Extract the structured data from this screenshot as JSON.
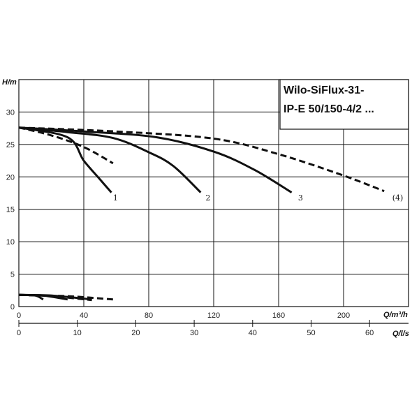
{
  "chart_data": {
    "type": "line",
    "title_lines": [
      "Wilo-SiFlux-31-",
      "IP-E 50/150-4/2 ..."
    ],
    "ylabel": "H/m",
    "xlabel": "Q/m³/h",
    "x2label": "Q/l/s",
    "ylim": [
      0,
      35
    ],
    "xlim": [
      0,
      240
    ],
    "x2lim": [
      0,
      66.67
    ],
    "yticks": [
      "0",
      "5",
      "10",
      "15",
      "20",
      "25",
      "30"
    ],
    "yticks_values": [
      0,
      5,
      10,
      15,
      20,
      25,
      30
    ],
    "xticks": [
      "0",
      "40",
      "80",
      "120",
      "160",
      "200"
    ],
    "xticks_values": [
      0,
      40,
      80,
      120,
      160,
      200
    ],
    "x2ticks": [
      "0",
      "10",
      "20",
      "30",
      "40",
      "50",
      "60"
    ],
    "x2ticks_values": [
      0,
      10,
      20,
      30,
      40,
      50,
      60
    ],
    "grid": true,
    "series": [
      {
        "name": "1",
        "style": "solid",
        "x": [
          0,
          30,
          40,
          50,
          57
        ],
        "y": [
          27.6,
          26.1,
          22.5,
          19.6,
          17.6
        ]
      },
      {
        "name": "2",
        "style": "solid",
        "x": [
          0,
          30,
          58,
          80,
          95,
          112
        ],
        "y": [
          27.6,
          26.9,
          26.0,
          23.8,
          21.7,
          17.6
        ]
      },
      {
        "name": "3",
        "style": "solid",
        "x": [
          0,
          40,
          85,
          120,
          145,
          168
        ],
        "y": [
          27.6,
          27.0,
          26.1,
          23.9,
          21.1,
          17.6
        ]
      },
      {
        "name": "(4)",
        "style": "dashed",
        "x": [
          0,
          60,
          120,
          160,
          200,
          225
        ],
        "y": [
          27.6,
          27.0,
          25.9,
          23.5,
          20.2,
          17.8
        ]
      },
      {
        "name": "",
        "style": "dashed",
        "x": [
          0,
          20,
          40,
          58
        ],
        "y": [
          27.6,
          26.4,
          24.6,
          22.1
        ]
      }
    ],
    "power_curves": [
      {
        "style": "solid",
        "x": [
          0,
          10,
          15
        ],
        "y": [
          1.8,
          1.7,
          1.1
        ]
      },
      {
        "style": "solid",
        "x": [
          0,
          15,
          30
        ],
        "y": [
          1.8,
          1.7,
          1.1
        ]
      },
      {
        "style": "solid",
        "x": [
          0,
          20,
          45
        ],
        "y": [
          1.8,
          1.7,
          1.1
        ]
      },
      {
        "style": "dashed",
        "x": [
          0,
          30,
          58
        ],
        "y": [
          1.8,
          1.6,
          1.1
        ]
      },
      {
        "style": "dashed",
        "x": [
          0,
          20,
          45
        ],
        "y": [
          1.8,
          1.6,
          1.0
        ]
      }
    ],
    "curve_labels": [
      {
        "text": "1",
        "x": 58,
        "y": 16.8
      },
      {
        "text": "2",
        "x": 115,
        "y": 16.8
      },
      {
        "text": "3",
        "x": 172,
        "y": 16.8
      },
      {
        "text": "(4)",
        "x": 230,
        "y": 16.8
      }
    ]
  }
}
